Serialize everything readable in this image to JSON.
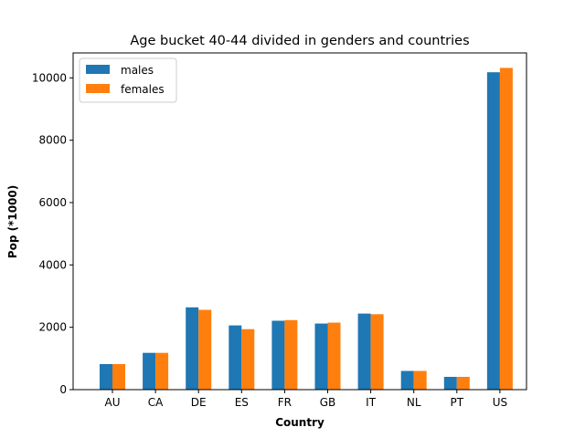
{
  "chart_data": {
    "type": "bar",
    "title": "Age bucket 40-44 divided in genders and countries",
    "xlabel": "Country",
    "ylabel": "Pop (*1000)",
    "categories": [
      "AU",
      "CA",
      "DE",
      "ES",
      "FR",
      "GB",
      "IT",
      "NL",
      "PT",
      "US"
    ],
    "series": [
      {
        "name": "males",
        "color": "#1f77b4",
        "values": [
          820,
          1180,
          2640,
          2060,
          2210,
          2120,
          2440,
          600,
          410,
          10180
        ]
      },
      {
        "name": "females",
        "color": "#ff7f0e",
        "values": [
          820,
          1180,
          2560,
          1940,
          2230,
          2150,
          2420,
          600,
          410,
          10320
        ]
      }
    ],
    "ylim": [
      0,
      10800
    ],
    "yticks": [
      0,
      2000,
      4000,
      6000,
      8000,
      10000
    ],
    "grid": false,
    "legend_position": "top-left"
  }
}
